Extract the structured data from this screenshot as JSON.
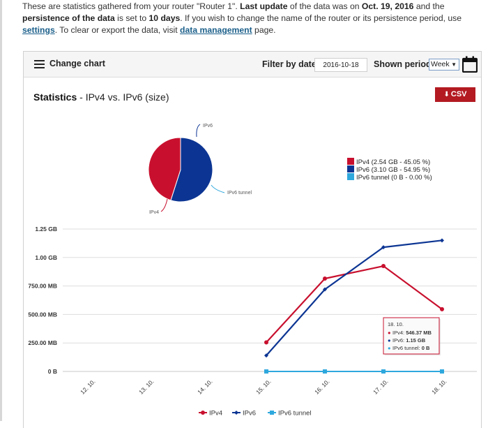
{
  "intro": {
    "t1": "These are statistics gathered from your router \"Router 1\". ",
    "b1": "Last update",
    "t2": " of the data was on ",
    "b2": "Oct. 19, 2016",
    "t3": " and the ",
    "b3": "persistence of the data",
    "t4": " is set to ",
    "b4": "10 days",
    "t5": ". If you wish to change the name of the router or its persistence period, use ",
    "link1": "settings",
    "t6": ". To clear or export the data, visit ",
    "link2": "data management",
    "t7": " page."
  },
  "toolbar": {
    "change_chart": "Change chart",
    "filter_label": "Filter by date:",
    "date_value": "2016-10-18",
    "period_label": "Shown period:",
    "period_value": "Week"
  },
  "stats": {
    "title_bold": "Statistics",
    "title_rest": " - IPv4 vs. IPv6 (size)",
    "csv_label": "CSV"
  },
  "colors": {
    "ipv4": "#c8102e",
    "ipv6": "#0c3593",
    "ipv6_tunnel": "#2fa8dd"
  },
  "chart_data": [
    {
      "type": "pie",
      "labels": [
        "IPv4",
        "IPv6",
        "IPv6 tunnel"
      ],
      "values": [
        45.05,
        54.95,
        0.0
      ],
      "legend": [
        "IPv4 (2.54 GB - 45.05 %)",
        "IPv6 (3.10 GB - 54.95 %)",
        "IPv6 tunnel (0 B - 0.00 %)"
      ],
      "legend_position": "right"
    },
    {
      "type": "line",
      "x": [
        "12. 10.",
        "13. 10.",
        "14. 10.",
        "15. 10.",
        "16. 10.",
        "17. 10.",
        "18. 10."
      ],
      "y_ticks": [
        "0 B",
        "250.00 MB",
        "500.00 MB",
        "750.00 MB",
        "1.00 GB",
        "1.25 GB"
      ],
      "ylim_mb": [
        0,
        1250
      ],
      "grid": true,
      "legend_position": "bottom",
      "series": [
        {
          "name": "IPv4",
          "values_mb": [
            null,
            null,
            null,
            255,
            815,
            925,
            546.37
          ]
        },
        {
          "name": "IPv6",
          "values_mb": [
            null,
            null,
            null,
            140,
            720,
            1090,
            1150
          ]
        },
        {
          "name": "IPv6 tunnel",
          "values_mb": [
            null,
            null,
            null,
            0,
            0,
            0,
            0
          ]
        }
      ],
      "tooltip": {
        "title": "18. 10.",
        "rows": [
          {
            "label": "IPv4: ",
            "value": "546.37 MB"
          },
          {
            "label": "IPv6: ",
            "value": "1.15 GB"
          },
          {
            "label": "IPv6 tunnel: ",
            "value": "0 B"
          }
        ]
      }
    }
  ]
}
